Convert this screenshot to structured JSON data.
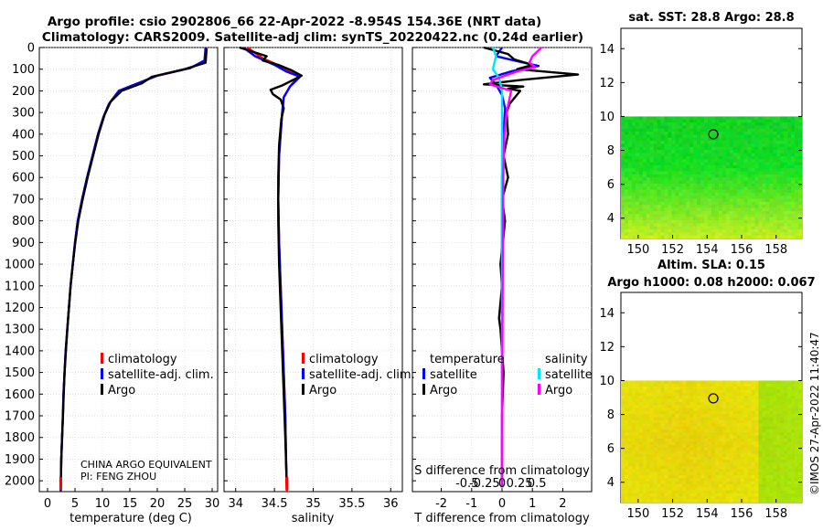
{
  "header": {
    "title_line1": "Argo profile: csio 2902806_66 22-Apr-2022 -8.954S 154.36E (NRT data)",
    "title_line2": "Climatology: CARS2009. Satellite-adj clim: synTS_20220422.nc (0.24d earlier)"
  },
  "colors": {
    "climatology": "#ff0000",
    "satellite": "#0000ff",
    "argo": "#000000",
    "sat_salinity": "#00e5ff",
    "argo_salinity": "#ff00ff"
  },
  "depth_axis": {
    "ticks": [
      0,
      100,
      200,
      300,
      400,
      500,
      600,
      700,
      800,
      900,
      1000,
      1100,
      1200,
      1300,
      1400,
      1500,
      1600,
      1700,
      1800,
      1900,
      2000
    ],
    "ylim": [
      2050,
      0
    ]
  },
  "chart_data": [
    {
      "type": "line",
      "id": "temperature",
      "xlabel": "temperature (deg C)",
      "xlim": [
        -1.5,
        31
      ],
      "xticks": [
        0,
        5,
        10,
        15,
        20,
        25,
        30
      ],
      "legend": {
        "position": "middle-right",
        "entries": [
          "climatology",
          "satellite-adj. clim.",
          "Argo"
        ]
      },
      "footnote": [
        "CHINA ARGO EQUIVALENT",
        "PI: FENG ZHOU"
      ],
      "series": [
        {
          "name": "climatology",
          "color": "#ff0000",
          "points": [
            [
              28.9,
              0
            ],
            [
              28.8,
              60
            ],
            [
              26,
              95
            ],
            [
              20,
              130
            ],
            [
              17,
              160
            ],
            [
              13,
              200
            ],
            [
              11.2,
              260
            ],
            [
              10.2,
              320
            ],
            [
              9.2,
              400
            ],
            [
              8.2,
              500
            ],
            [
              7.2,
              600
            ],
            [
              6.3,
              700
            ],
            [
              5.5,
              800
            ],
            [
              5,
              900
            ],
            [
              4.6,
              1000
            ],
            [
              4.2,
              1100
            ],
            [
              3.9,
              1200
            ],
            [
              3.6,
              1300
            ],
            [
              3.3,
              1400
            ],
            [
              3.1,
              1500
            ],
            [
              2.9,
              1600
            ],
            [
              2.8,
              1700
            ],
            [
              2.65,
              1800
            ],
            [
              2.5,
              1900
            ],
            [
              2.4,
              2050
            ]
          ]
        },
        {
          "name": "satellite-adj. clim.",
          "color": "#0000ff",
          "points": [
            [
              28.8,
              0
            ],
            [
              28.6,
              60
            ],
            [
              26,
              95
            ],
            [
              20,
              130
            ],
            [
              17,
              160
            ],
            [
              13,
              200
            ],
            [
              11.2,
              260
            ],
            [
              10.2,
              320
            ],
            [
              9.2,
              400
            ],
            [
              8.2,
              500
            ],
            [
              7.2,
              600
            ],
            [
              6.3,
              700
            ],
            [
              5.5,
              800
            ],
            [
              5,
              900
            ],
            [
              4.6,
              1000
            ],
            [
              4.2,
              1100
            ],
            [
              3.9,
              1200
            ],
            [
              3.6,
              1300
            ],
            [
              3.3,
              1400
            ],
            [
              3.1,
              1500
            ],
            [
              2.9,
              1600
            ],
            [
              2.8,
              1700
            ],
            [
              2.65,
              1800
            ],
            [
              2.5,
              1900
            ],
            [
              2.4,
              2050
            ]
          ]
        },
        {
          "name": "Argo",
          "color": "#000000",
          "points": [
            [
              29,
              5
            ],
            [
              28.8,
              70
            ],
            [
              25,
              100
            ],
            [
              19,
              135
            ],
            [
              17.2,
              165
            ],
            [
              13.5,
              200
            ],
            [
              11.5,
              250
            ],
            [
              10.4,
              310
            ],
            [
              9.3,
              400
            ],
            [
              8.3,
              500
            ],
            [
              7.3,
              600
            ],
            [
              6.4,
              700
            ],
            [
              5.6,
              800
            ],
            [
              5.05,
              900
            ],
            [
              4.6,
              1000
            ],
            [
              4.2,
              1100
            ],
            [
              3.9,
              1200
            ],
            [
              3.6,
              1300
            ],
            [
              3.35,
              1400
            ],
            [
              3.1,
              1500
            ],
            [
              2.95,
              1600
            ],
            [
              2.8,
              1700
            ],
            [
              2.65,
              1800
            ],
            [
              2.5,
              1900
            ],
            [
              2.4,
              2030
            ]
          ]
        }
      ]
    },
    {
      "type": "line",
      "id": "salinity",
      "xlabel": "salinity",
      "xlim": [
        33.85,
        36.15
      ],
      "xticks": [
        34,
        34.5,
        35,
        35.5,
        36
      ],
      "xticklabels": [
        "34",
        "34.5",
        "35",
        "35.5",
        "36"
      ],
      "legend": {
        "position": "middle-right",
        "entries": [
          "climatology",
          "satellite-adj. clim.",
          "Argo"
        ]
      },
      "series": [
        {
          "name": "climatology",
          "color": "#ff0000",
          "points": [
            [
              34.15,
              0
            ],
            [
              34.35,
              50
            ],
            [
              34.6,
              90
            ],
            [
              34.82,
              130
            ],
            [
              34.7,
              180
            ],
            [
              34.62,
              230
            ],
            [
              34.6,
              300
            ],
            [
              34.58,
              400
            ],
            [
              34.56,
              500
            ],
            [
              34.55,
              700
            ],
            [
              34.56,
              900
            ],
            [
              34.58,
              1100
            ],
            [
              34.6,
              1300
            ],
            [
              34.62,
              1500
            ],
            [
              34.64,
              1700
            ],
            [
              34.65,
              1900
            ],
            [
              34.66,
              2050
            ]
          ]
        },
        {
          "name": "satellite-adj. clim.",
          "color": "#0000ff",
          "points": [
            [
              34.1,
              0
            ],
            [
              34.25,
              40
            ],
            [
              34.5,
              80
            ],
            [
              34.65,
              110
            ],
            [
              34.83,
              135
            ],
            [
              34.7,
              180
            ],
            [
              34.62,
              230
            ],
            [
              34.6,
              300
            ],
            [
              34.58,
              400
            ],
            [
              34.56,
              500
            ],
            [
              34.55,
              700
            ],
            [
              34.56,
              900
            ],
            [
              34.58,
              1100
            ],
            [
              34.6,
              1300
            ],
            [
              34.62,
              1500
            ],
            [
              34.64,
              1700
            ],
            [
              34.65,
              1900
            ],
            [
              34.66,
              2030
            ]
          ]
        },
        {
          "name": "Argo",
          "color": "#000000",
          "points": [
            [
              34.05,
              0
            ],
            [
              34.4,
              40
            ],
            [
              34.35,
              60
            ],
            [
              34.55,
              80
            ],
            [
              34.72,
              105
            ],
            [
              34.85,
              130
            ],
            [
              34.6,
              175
            ],
            [
              34.45,
              195
            ],
            [
              34.48,
              215
            ],
            [
              34.58,
              240
            ],
            [
              34.62,
              280
            ],
            [
              34.59,
              330
            ],
            [
              34.56,
              450
            ],
            [
              34.55,
              600
            ],
            [
              34.55,
              800
            ],
            [
              34.56,
              1000
            ],
            [
              34.58,
              1200
            ],
            [
              34.6,
              1400
            ],
            [
              34.62,
              1600
            ],
            [
              34.64,
              1800
            ],
            [
              34.66,
              2030
            ]
          ]
        }
      ]
    },
    {
      "type": "line",
      "id": "difference",
      "xlabel": "T difference from climatology",
      "top_label": "S difference from climatology",
      "xlim": [
        -2.95,
        2.95
      ],
      "xticks": [
        -2,
        -1,
        0,
        1,
        2
      ],
      "xticklabels": [
        "-2",
        "-1",
        "0",
        "1",
        "2"
      ],
      "s_ticklabels": [
        "-0.5",
        "-0.25",
        "0",
        "0.25",
        "0.5"
      ],
      "legend": {
        "temperature_title": "temperature",
        "salinity_title": "salinity",
        "entries": [
          "satellite",
          "Argo",
          "satellite",
          "Argo"
        ]
      },
      "series": [
        {
          "name": "temperature satellite",
          "color": "#0000ff",
          "points": [
            [
              0,
              0
            ],
            [
              -0.2,
              40
            ],
            [
              0.4,
              60
            ],
            [
              1.2,
              85
            ],
            [
              0.3,
              110
            ],
            [
              -0.4,
              140
            ],
            [
              -0.2,
              170
            ],
            [
              0,
              220
            ],
            [
              0.1,
              280
            ],
            [
              0.05,
              400
            ],
            [
              0,
              600
            ],
            [
              0,
              1000
            ],
            [
              0,
              1500
            ],
            [
              0,
              2030
            ]
          ]
        },
        {
          "name": "temperature Argo",
          "color": "#000000",
          "points": [
            [
              -0.6,
              0
            ],
            [
              0.2,
              30
            ],
            [
              0.4,
              55
            ],
            [
              1,
              80
            ],
            [
              0.5,
              100
            ],
            [
              2.5,
              125
            ],
            [
              0.6,
              150
            ],
            [
              -0.6,
              170
            ],
            [
              0.7,
              180
            ],
            [
              0.2,
              190
            ],
            [
              0.6,
              200
            ],
            [
              0.25,
              260
            ],
            [
              0.15,
              300
            ],
            [
              0.2,
              400
            ],
            [
              0.05,
              500
            ],
            [
              0.2,
              600
            ],
            [
              0.0,
              700
            ],
            [
              0.1,
              800
            ],
            [
              -0.05,
              1000
            ],
            [
              0,
              1100
            ],
            [
              -0.1,
              1250
            ],
            [
              -0.05,
              1300
            ],
            [
              0,
              1400
            ],
            [
              0.05,
              1500
            ],
            [
              0,
              1700
            ],
            [
              0,
              1900
            ],
            [
              0,
              2030
            ]
          ]
        },
        {
          "name": "salinity satellite",
          "color": "#00e5ff",
          "points": [
            [
              -0.3,
              0
            ],
            [
              -0.2,
              40
            ],
            [
              -0.3,
              100
            ],
            [
              -0.1,
              140
            ],
            [
              0,
              200
            ],
            [
              0,
              300
            ],
            [
              0,
              600
            ],
            [
              0,
              1000
            ],
            [
              0,
              1500
            ],
            [
              0,
              2030
            ]
          ]
        },
        {
          "name": "salinity Argo",
          "color": "#ff00ff",
          "points": [
            [
              1.3,
              0
            ],
            [
              1,
              40
            ],
            [
              0.9,
              70
            ],
            [
              1.1,
              90
            ],
            [
              0.5,
              110
            ],
            [
              -0.3,
              150
            ],
            [
              -0.4,
              170
            ],
            [
              0.3,
              200
            ],
            [
              0.15,
              300
            ],
            [
              0.08,
              400
            ],
            [
              0.04,
              600
            ],
            [
              0.03,
              800
            ],
            [
              0.02,
              1100
            ],
            [
              0.01,
              1500
            ],
            [
              0,
              2030
            ]
          ]
        }
      ]
    }
  ],
  "maps": [
    {
      "id": "sst",
      "title": "sat. SST: 28.8 Argo: 28.8",
      "yticks": [
        4,
        6,
        8,
        10,
        12,
        14
      ],
      "xticks": [
        150,
        152,
        154,
        156,
        158
      ],
      "palette": "green",
      "marker": {
        "lon": 154.36,
        "lat": 8.95
      }
    },
    {
      "id": "sla",
      "title_line1": "Altim. SLA: 0.15",
      "title_line2": "Argo h1000: 0.08 h2000: 0.067",
      "yticks": [
        4,
        6,
        8,
        10,
        12,
        14
      ],
      "xticks": [
        150,
        152,
        154,
        156,
        158
      ],
      "palette": "yellow",
      "marker": {
        "lon": 154.36,
        "lat": 8.95
      }
    }
  ],
  "stamp": "©IMOS 27-Apr-2022 11:40:47"
}
